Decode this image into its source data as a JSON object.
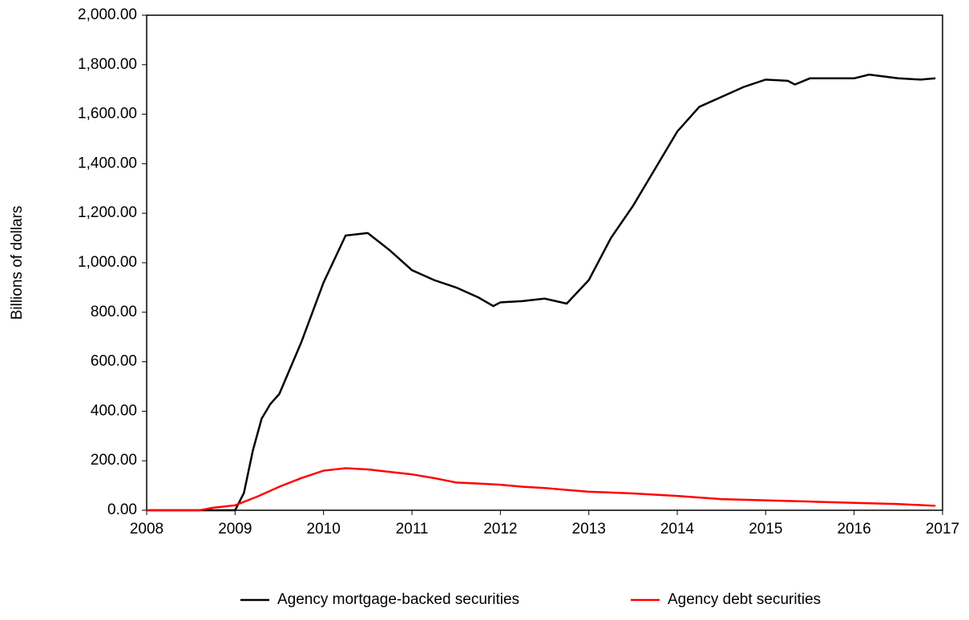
{
  "chart_data": {
    "type": "line",
    "y_label": "Billions of dollars",
    "xlim": [
      2008,
      2017
    ],
    "xticks": [
      2008,
      2009,
      2010,
      2011,
      2012,
      2013,
      2014,
      2015,
      2016,
      2017
    ],
    "ylim": [
      0,
      2000
    ],
    "yticks": [
      {
        "value": 0,
        "label": "0.00"
      },
      {
        "value": 200,
        "label": "200.00"
      },
      {
        "value": 400,
        "label": "400.00"
      },
      {
        "value": 600,
        "label": "600.00"
      },
      {
        "value": 800,
        "label": "800.00"
      },
      {
        "value": 1000,
        "label": "1,000.00"
      },
      {
        "value": 1200,
        "label": "1,200.00"
      },
      {
        "value": 1400,
        "label": "1,400.00"
      },
      {
        "value": 1600,
        "label": "1,600.00"
      },
      {
        "value": 1800,
        "label": "1,800.00"
      },
      {
        "value": 2000,
        "label": "2,000.00"
      }
    ],
    "grid": false,
    "legend": "bottom",
    "series": [
      {
        "name": "Agency mortgage-backed securities",
        "color": "#000000",
        "x": [
          2008,
          2008.5,
          2009,
          2009.1,
          2009.2,
          2009.3,
          2009.4,
          2009.5,
          2009.75,
          2010,
          2010.25,
          2010.5,
          2010.75,
          2011,
          2011.25,
          2011.5,
          2011.75,
          2011.92,
          2012,
          2012.25,
          2012.5,
          2012.75,
          2013,
          2013.25,
          2013.5,
          2013.75,
          2014,
          2014.25,
          2014.5,
          2014.75,
          2015,
          2015.25,
          2015.33,
          2015.5,
          2015.75,
          2016,
          2016.17,
          2016.5,
          2016.75,
          2016.92
        ],
        "values": [
          0,
          0,
          0,
          70,
          240,
          370,
          430,
          470,
          680,
          920,
          1110,
          1120,
          1050,
          970,
          930,
          900,
          860,
          825,
          840,
          845,
          855,
          835,
          930,
          1100,
          1230,
          1380,
          1530,
          1630,
          1670,
          1710,
          1740,
          1735,
          1720,
          1745,
          1745,
          1745,
          1760,
          1745,
          1740,
          1745
        ]
      },
      {
        "name": "Agency debt securities",
        "color": "#ff0000",
        "x": [
          2008,
          2008.6,
          2008.75,
          2009,
          2009.25,
          2009.5,
          2009.75,
          2010,
          2010.25,
          2010.5,
          2010.75,
          2011,
          2011.25,
          2011.5,
          2011.75,
          2012,
          2012.25,
          2012.5,
          2012.75,
          2013,
          2013.5,
          2014,
          2014.5,
          2015,
          2015.5,
          2016,
          2016.5,
          2016.92
        ],
        "values": [
          0,
          0,
          10,
          20,
          55,
          95,
          130,
          160,
          170,
          165,
          155,
          145,
          130,
          112,
          108,
          103,
          95,
          90,
          82,
          75,
          68,
          58,
          45,
          40,
          35,
          30,
          25,
          18
        ]
      }
    ]
  }
}
